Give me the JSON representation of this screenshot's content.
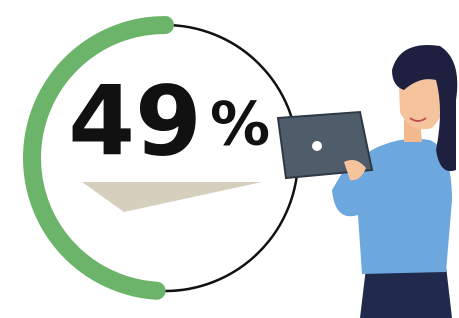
{
  "gauge": {
    "value": 49,
    "unit": "%"
  }
}
